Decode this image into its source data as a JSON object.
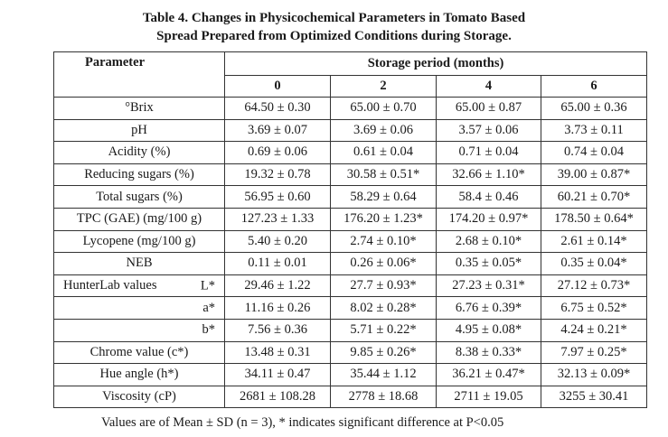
{
  "caption": {
    "line1": "Table 4. Changes in Physicochemical Parameters in Tomato Based",
    "line2": "Spread Prepared from Optimized Conditions during Storage."
  },
  "table": {
    "parameter_header": "Parameter",
    "storage_header": "Storage period (months)",
    "months": [
      "0",
      "2",
      "4",
      "6"
    ],
    "rows": [
      {
        "label": "°Brix",
        "values": [
          "64.50 ± 0.30",
          "65.00 ± 0.70",
          "65.00 ± 0.87",
          "65.00 ± 0.36"
        ]
      },
      {
        "label": "pH",
        "values": [
          "3.69 ± 0.07",
          "3.69 ± 0.06",
          "3.57 ± 0.06",
          "3.73 ± 0.11"
        ]
      },
      {
        "label": "Acidity (%)",
        "values": [
          "0.69 ± 0.06",
          "0.61 ± 0.04",
          "0.71 ± 0.04",
          "0.74 ± 0.04"
        ]
      },
      {
        "label": "Reducing sugars (%)",
        "values": [
          "19.32 ± 0.78",
          "30.58 ± 0.51*",
          "32.66 ± 1.10*",
          "39.00 ± 0.87*"
        ]
      },
      {
        "label": "Total sugars (%)",
        "values": [
          "56.95 ± 0.60",
          "58.29 ± 0.64",
          "58.4 ± 0.46",
          "60.21 ± 0.70*"
        ]
      },
      {
        "label": "TPC (GAE) (mg/100 g)",
        "values": [
          "127.23 ± 1.33",
          "176.20 ± 1.23*",
          "174.20 ± 0.97*",
          "178.50 ± 0.64*"
        ]
      },
      {
        "label": "Lycopene (mg/100 g)",
        "values": [
          "5.40 ± 0.20",
          "2.74 ± 0.10*",
          "2.68 ± 0.10*",
          "2.61 ± 0.14*"
        ]
      },
      {
        "label": "NEB",
        "values": [
          "0.11 ± 0.01",
          "0.26 ± 0.06*",
          "0.35 ± 0.05*",
          "0.35 ± 0.04*"
        ]
      }
    ],
    "hunterlab": {
      "label": "HunterLab values",
      "rows": [
        {
          "sub": "L*",
          "values": [
            "29.46 ± 1.22",
            "27.7 ± 0.93*",
            "27.23 ± 0.31*",
            "27.12 ± 0.73*"
          ]
        },
        {
          "sub": "a*",
          "values": [
            "11.16 ± 0.26",
            "8.02 ± 0.28*",
            "6.76 ± 0.39*",
            "6.75 ± 0.52*"
          ]
        },
        {
          "sub": "b*",
          "values": [
            "7.56 ± 0.36",
            "5.71 ± 0.22*",
            "4.95 ± 0.08*",
            "4.24 ± 0.21*"
          ]
        }
      ]
    },
    "rows_after": [
      {
        "label": "Chrome value (c*)",
        "values": [
          "13.48 ± 0.31",
          "9.85 ± 0.26*",
          "8.38 ± 0.33*",
          "7.97 ± 0.25*"
        ]
      },
      {
        "label": "Hue angle (h*)",
        "values": [
          "34.11 ± 0.47",
          "35.44 ± 1.12",
          "36.21 ± 0.47*",
          "32.13 ± 0.09*"
        ]
      },
      {
        "label": "Viscosity (cP)",
        "values": [
          "2681 ± 108.28",
          "2778 ± 18.68",
          "2711 ± 19.05",
          "3255 ± 30.41"
        ]
      }
    ]
  },
  "footnote": "Values are of Mean ± SD (n = 3), * indicates significant difference at P<0.05"
}
